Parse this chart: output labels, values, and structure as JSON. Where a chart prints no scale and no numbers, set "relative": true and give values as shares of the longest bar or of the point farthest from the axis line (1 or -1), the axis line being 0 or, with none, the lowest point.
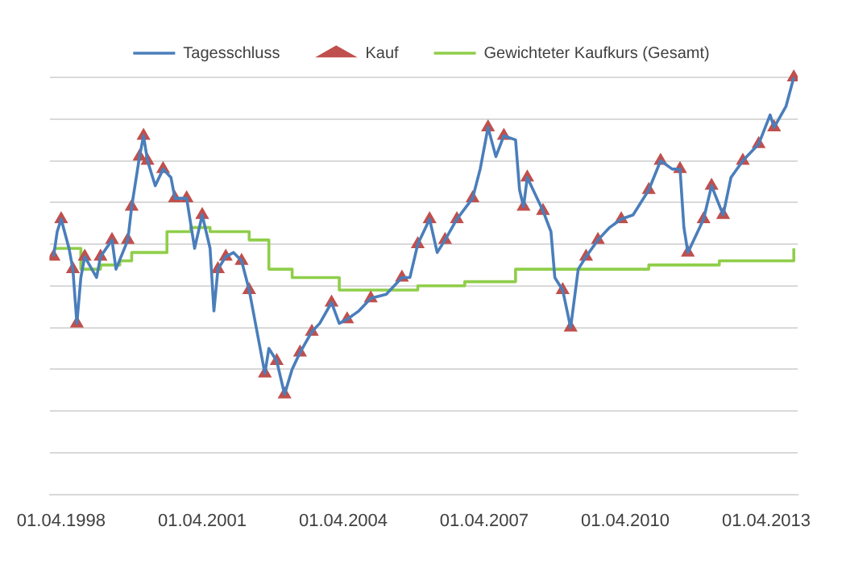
{
  "chart_data": {
    "type": "line",
    "relative": true,
    "grid": "y",
    "legend": "top",
    "xlim": [
      "1998-01",
      "2013-12"
    ],
    "xticks": [
      {
        "value": "1998-04-01",
        "label": "01.04.1998"
      },
      {
        "value": "2001-04-01",
        "label": "01.04.2001"
      },
      {
        "value": "2004-04-01",
        "label": "01.04.2004"
      },
      {
        "value": "2007-04-01",
        "label": "01.04.2007"
      },
      {
        "value": "2010-04-01",
        "label": "01.04.2010"
      },
      {
        "value": "2013-04-01",
        "label": "01.04.2013"
      }
    ],
    "series": [
      {
        "name": "Tagesschluss",
        "color": "#4a7ebb",
        "x": [
          "1998-02",
          "1998-03",
          "1998-04",
          "1998-06",
          "1998-07",
          "1998-08",
          "1998-09",
          "1998-10",
          "1999-01",
          "1999-02",
          "1999-05",
          "1999-06",
          "1999-09",
          "1999-10",
          "1999-12",
          "2000-01",
          "2000-02",
          "2000-04",
          "2000-06",
          "2000-08",
          "2000-09",
          "2000-12",
          "2001-02",
          "2001-04",
          "2001-06",
          "2001-07",
          "2001-08",
          "2001-10",
          "2001-12",
          "2002-02",
          "2002-04",
          "2002-06",
          "2002-08",
          "2002-09",
          "2002-11",
          "2003-01",
          "2003-03",
          "2003-05",
          "2003-08",
          "2003-10",
          "2004-01",
          "2004-03",
          "2004-05",
          "2004-08",
          "2004-11",
          "2005-03",
          "2005-07",
          "2005-09",
          "2005-11",
          "2006-02",
          "2006-04",
          "2006-06",
          "2006-09",
          "2007-01",
          "2007-03",
          "2007-05",
          "2007-07",
          "2007-09",
          "2007-12",
          "2008-01",
          "2008-02",
          "2008-03",
          "2008-07",
          "2008-09",
          "2008-10",
          "2008-12",
          "2009-02",
          "2009-04",
          "2009-06",
          "2009-09",
          "2009-12",
          "2010-03",
          "2010-06",
          "2010-10",
          "2011-01",
          "2011-04",
          "2011-06",
          "2011-07",
          "2011-08",
          "2011-12",
          "2012-02",
          "2012-05",
          "2012-07",
          "2012-10",
          "2013-02",
          "2013-05",
          "2013-06",
          "2013-09",
          "2013-11"
        ],
        "values": [
          0.57,
          0.63,
          0.66,
          0.59,
          0.54,
          0.41,
          0.52,
          0.57,
          0.52,
          0.57,
          0.61,
          0.54,
          0.61,
          0.69,
          0.81,
          0.86,
          0.8,
          0.74,
          0.78,
          0.76,
          0.71,
          0.71,
          0.59,
          0.67,
          0.59,
          0.44,
          0.54,
          0.57,
          0.58,
          0.56,
          0.49,
          0.39,
          0.29,
          0.35,
          0.32,
          0.24,
          0.3,
          0.34,
          0.39,
          0.41,
          0.46,
          0.41,
          0.42,
          0.44,
          0.47,
          0.48,
          0.52,
          0.52,
          0.6,
          0.66,
          0.58,
          0.61,
          0.66,
          0.71,
          0.78,
          0.88,
          0.81,
          0.86,
          0.85,
          0.73,
          0.69,
          0.76,
          0.68,
          0.63,
          0.52,
          0.49,
          0.4,
          0.54,
          0.57,
          0.61,
          0.64,
          0.66,
          0.67,
          0.73,
          0.8,
          0.78,
          0.78,
          0.64,
          0.58,
          0.66,
          0.74,
          0.67,
          0.76,
          0.8,
          0.84,
          0.91,
          0.88,
          0.93,
          1
        ]
      },
      {
        "name": "Kauf",
        "type": "scatter",
        "marker": "triangle",
        "color": "#c0504d",
        "x": [
          "1998-02",
          "1998-04",
          "1998-07",
          "1998-08",
          "1998-10",
          "1999-02",
          "1999-05",
          "1999-09",
          "1999-10",
          "1999-12",
          "2000-01",
          "2000-02",
          "2000-06",
          "2000-09",
          "2000-12",
          "2001-04",
          "2001-08",
          "2001-10",
          "2002-02",
          "2002-04",
          "2002-08",
          "2002-11",
          "2003-01",
          "2003-05",
          "2003-08",
          "2004-01",
          "2004-05",
          "2004-11",
          "2005-07",
          "2005-11",
          "2006-02",
          "2006-06",
          "2006-09",
          "2007-01",
          "2007-05",
          "2007-09",
          "2008-02",
          "2008-03",
          "2008-07",
          "2008-12",
          "2009-02",
          "2009-06",
          "2009-09",
          "2010-03",
          "2010-10",
          "2011-01",
          "2011-06",
          "2011-08",
          "2011-12",
          "2012-02",
          "2012-05",
          "2012-10",
          "2013-02",
          "2013-06",
          "2013-11"
        ],
        "values": [
          0.57,
          0.66,
          0.54,
          0.41,
          0.57,
          0.57,
          0.61,
          0.61,
          0.69,
          0.81,
          0.86,
          0.8,
          0.78,
          0.71,
          0.71,
          0.67,
          0.54,
          0.57,
          0.56,
          0.49,
          0.29,
          0.32,
          0.24,
          0.34,
          0.39,
          0.46,
          0.42,
          0.47,
          0.52,
          0.6,
          0.66,
          0.61,
          0.66,
          0.71,
          0.88,
          0.86,
          0.69,
          0.76,
          0.68,
          0.49,
          0.4,
          0.57,
          0.61,
          0.66,
          0.73,
          0.8,
          0.78,
          0.58,
          0.66,
          0.74,
          0.67,
          0.8,
          0.84,
          0.88,
          1
        ]
      },
      {
        "name": "Gewichteter Kaufkurs (Gesamt)",
        "type": "step",
        "color": "#8fce4a",
        "x": [
          "1998-02",
          "1998-09",
          "1999-02",
          "1999-07",
          "1999-10",
          "2000-07",
          "2001-01",
          "2001-06",
          "2002-04",
          "2002-09",
          "2003-03",
          "2004-03",
          "2005-01",
          "2005-11",
          "2006-11",
          "2007-12",
          "2009-04",
          "2010-10",
          "2012-04",
          "2013-11"
        ],
        "values": [
          0.59,
          0.54,
          0.55,
          0.56,
          0.58,
          0.63,
          0.64,
          0.63,
          0.61,
          0.54,
          0.52,
          0.49,
          0.49,
          0.5,
          0.51,
          0.54,
          0.54,
          0.55,
          0.56,
          0.59
        ]
      }
    ]
  }
}
